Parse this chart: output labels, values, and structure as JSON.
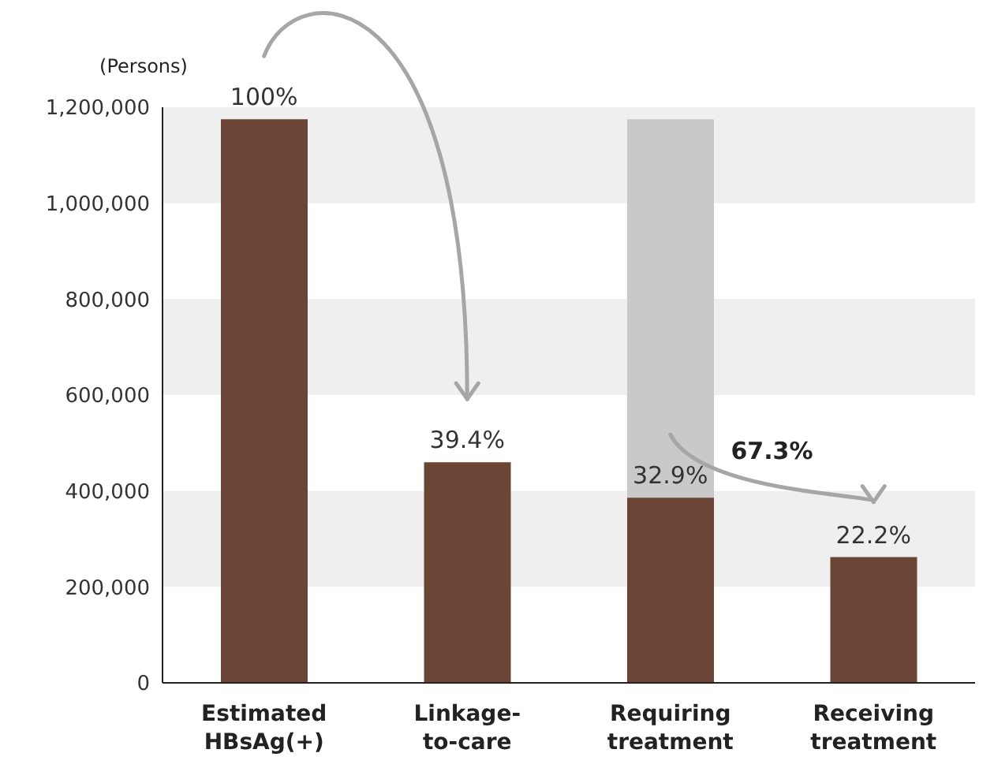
{
  "chart_data": {
    "type": "bar",
    "ylabel": "(Persons)",
    "categories": [
      "Estimated\nHBsAg(+)",
      "Linkage-\nto-care",
      "Requiring\ntreatment",
      "Receiving\ntreatment"
    ],
    "series": [
      {
        "color": "#c9c9c9",
        "values": [
          null,
          null,
          1175000,
          null
        ]
      },
      {
        "color": "#6b4536",
        "values": [
          1175000,
          460000,
          386000,
          262000
        ]
      }
    ],
    "ylim": [
      0,
      1200000
    ],
    "yticks": [
      {
        "value": 0,
        "label": "0"
      },
      {
        "value": 200000,
        "label": "200,000"
      },
      {
        "value": 400000,
        "label": "400,000"
      },
      {
        "value": 600000,
        "label": "600,000"
      },
      {
        "value": 800000,
        "label": "800,000"
      },
      {
        "value": 1000000,
        "label": "1,000,000"
      },
      {
        "value": 1200000,
        "label": "1,200,000"
      }
    ],
    "bands": [
      {
        "axis": "y",
        "from": 200000,
        "to": 400000,
        "color": "#efefef"
      },
      {
        "axis": "y",
        "from": 600000,
        "to": 800000,
        "color": "#efefef"
      },
      {
        "axis": "y",
        "from": 1000000,
        "to": 1200000,
        "color": "#efefef"
      }
    ],
    "annotations": [
      {
        "text": "100%",
        "x": "Estimated\nHBsAg(+)",
        "y": 1175000
      },
      {
        "text": "39.4%",
        "x": "Linkage-\nto-care",
        "y": 460000
      },
      {
        "text": "32.9%",
        "x": "Requiring\ntreatment",
        "y": 386000
      },
      {
        "text": "22.2%",
        "x": "Receiving\ntreatment",
        "y": 262000
      },
      "67.3%"
    ]
  }
}
